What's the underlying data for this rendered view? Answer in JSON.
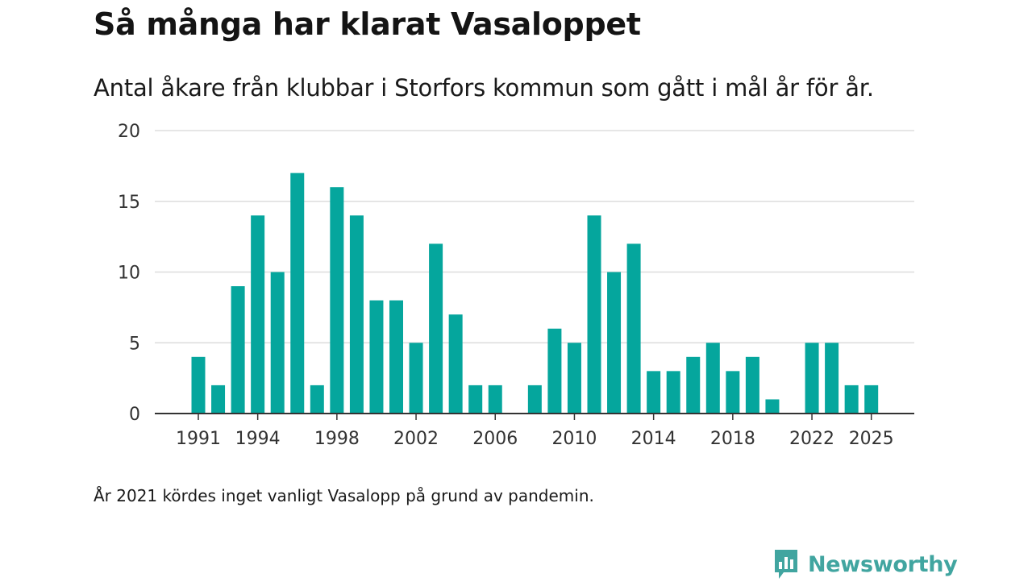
{
  "header": {
    "title": "Så många har klarat Vasaloppet",
    "subtitle": "Antal åkare från klubbar i Storfors kommun som gått i mål år för år."
  },
  "footer": {
    "note": "År 2021 kördes inget vanligt Vasalopp på grund av pandemin.",
    "brand": "Newsworthy"
  },
  "colors": {
    "bar": "#05a69d",
    "grid": "#dddddd",
    "axis": "#333333",
    "brand": "#41a5a0"
  },
  "chart_data": {
    "type": "bar",
    "title": "Så många har klarat Vasaloppet",
    "xlabel": "",
    "ylabel": "",
    "ylim": [
      0,
      20
    ],
    "yticks": [
      0,
      5,
      10,
      15,
      20
    ],
    "xticks": [
      1991,
      1994,
      1998,
      2002,
      2006,
      2010,
      2014,
      2018,
      2022,
      2025
    ],
    "grid": true,
    "categories": [
      1991,
      1992,
      1993,
      1994,
      1995,
      1996,
      1997,
      1998,
      1999,
      2000,
      2001,
      2002,
      2003,
      2004,
      2005,
      2006,
      2007,
      2008,
      2009,
      2010,
      2011,
      2012,
      2013,
      2014,
      2015,
      2016,
      2017,
      2018,
      2019,
      2020,
      2021,
      2022,
      2023,
      2024,
      2025
    ],
    "values": [
      4,
      2,
      9,
      14,
      10,
      17,
      2,
      16,
      14,
      8,
      8,
      5,
      12,
      7,
      2,
      2,
      0,
      2,
      6,
      5,
      14,
      10,
      12,
      3,
      3,
      4,
      5,
      3,
      4,
      1,
      0,
      5,
      5,
      2,
      2
    ]
  }
}
